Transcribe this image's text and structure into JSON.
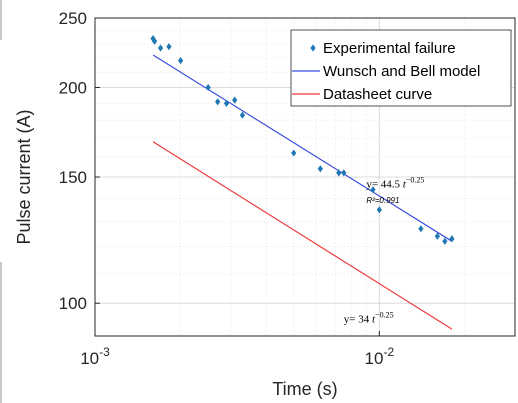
{
  "chart_data": {
    "type": "scatter",
    "xscale": "log",
    "yscale": "log",
    "xlim": [
      0.001,
      0.03
    ],
    "ylim": [
      90,
      250
    ],
    "grid": true,
    "xlabel": "Time (s)",
    "ylabel": "Pulse current (A)",
    "x_ticks": [
      {
        "value": 0.001,
        "base": "10",
        "exp": "-3"
      },
      {
        "value": 0.01,
        "base": "10",
        "exp": "-2"
      }
    ],
    "y_ticks": [
      {
        "value": 100,
        "label": "100"
      },
      {
        "value": 150,
        "label": "150"
      },
      {
        "value": 200,
        "label": "200"
      },
      {
        "value": 250,
        "label": "250"
      }
    ],
    "legend_position": "top-right",
    "legend": [
      {
        "label": "Experimental failure",
        "marker": "point",
        "color": "#1f77b4"
      },
      {
        "label": "Wunsch and Bell model",
        "marker": "line",
        "color": "#3b4fe0"
      },
      {
        "label": "Datasheet curve",
        "marker": "line",
        "color": "#ee3b3b"
      }
    ],
    "series": [
      {
        "name": "Experimental failure",
        "kind": "points",
        "color": "#1f77b4",
        "points": [
          {
            "x": 0.0016,
            "y": 234
          },
          {
            "x": 0.00162,
            "y": 232
          },
          {
            "x": 0.0017,
            "y": 227
          },
          {
            "x": 0.00182,
            "y": 228
          },
          {
            "x": 0.002,
            "y": 218
          },
          {
            "x": 0.0025,
            "y": 200
          },
          {
            "x": 0.0027,
            "y": 191
          },
          {
            "x": 0.0029,
            "y": 190
          },
          {
            "x": 0.0031,
            "y": 192
          },
          {
            "x": 0.0033,
            "y": 183
          },
          {
            "x": 0.005,
            "y": 162
          },
          {
            "x": 0.0062,
            "y": 154
          },
          {
            "x": 0.0072,
            "y": 152
          },
          {
            "x": 0.0075,
            "y": 152
          },
          {
            "x": 0.0095,
            "y": 144
          },
          {
            "x": 0.01,
            "y": 135
          },
          {
            "x": 0.014,
            "y": 127
          },
          {
            "x": 0.016,
            "y": 124
          },
          {
            "x": 0.017,
            "y": 122
          },
          {
            "x": 0.018,
            "y": 123
          }
        ]
      },
      {
        "name": "Wunsch and Bell model",
        "kind": "line",
        "color": "#3b4fe0",
        "points": [
          {
            "x": 0.0016,
            "y": 222
          },
          {
            "x": 0.018,
            "y": 122
          }
        ]
      },
      {
        "name": "Datasheet curve",
        "kind": "line",
        "color": "#ee3b3b",
        "points": [
          {
            "x": 0.0016,
            "y": 168
          },
          {
            "x": 0.018,
            "y": 92
          }
        ]
      }
    ],
    "annotations": [
      {
        "id": "eq_wb",
        "prefix": "y= 44.5 ",
        "var": "t",
        "exp": "−0.25",
        "x": 0.009,
        "y": 145
      },
      {
        "id": "r2_wb",
        "text": "R²=0.991",
        "x": 0.009,
        "y": 138
      },
      {
        "id": "eq_ds",
        "prefix": "y= 34 ",
        "var": "t",
        "exp": "−0.25",
        "x": 0.0075,
        "y": 94
      }
    ]
  }
}
